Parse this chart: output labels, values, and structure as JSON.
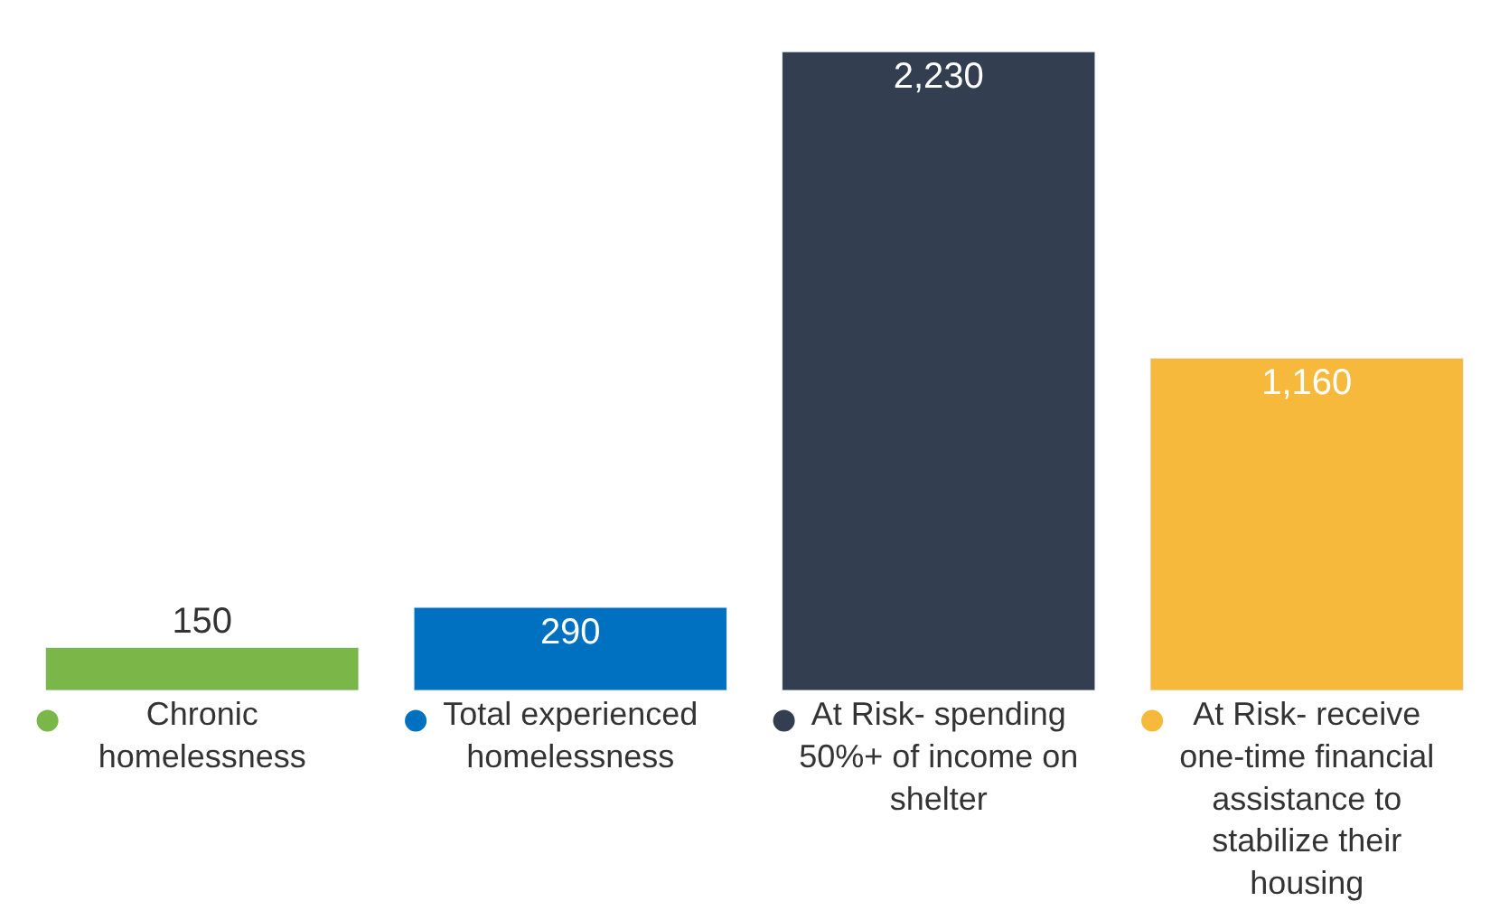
{
  "chart_data": {
    "type": "bar",
    "categories": [
      "Chronic homelessness",
      "Total experienced homelessness",
      "At Risk- spending 50%+ of income on shelter",
      "At Risk- receive one-time financial assistance to stabilize their housing"
    ],
    "values": [
      150,
      290,
      2230,
      1160
    ],
    "colors": [
      "#7ab648",
      "#0070c0",
      "#333f50",
      "#f6b93b"
    ],
    "value_labels": [
      "150",
      "290",
      "2,230",
      "1,160"
    ],
    "tick_labels": "x"
  }
}
